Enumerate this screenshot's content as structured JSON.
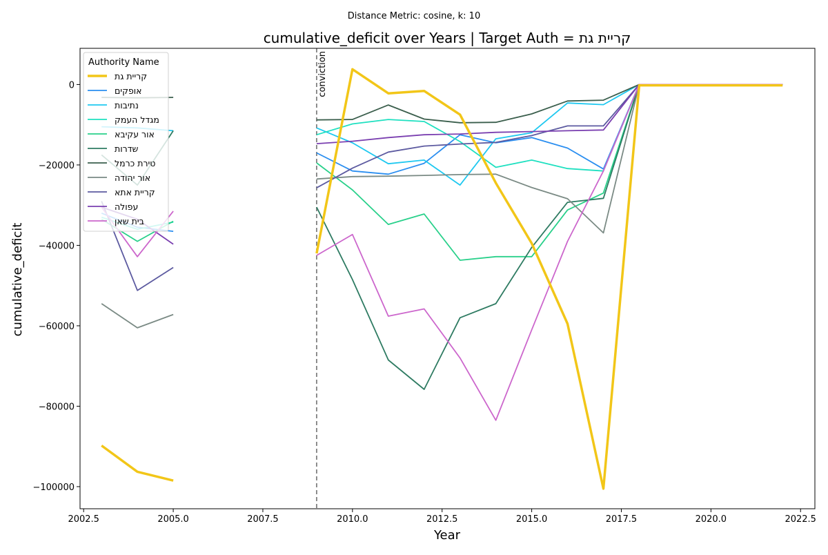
{
  "suptitle": "Distance Metric: cosine, k: 10",
  "chart_data": {
    "type": "line",
    "title": "cumulative_deficit over Years | Target Auth = קריית גת",
    "xlabel": "Year",
    "ylabel": "cumulative_deficit",
    "xlim": [
      2002.4,
      2022.9
    ],
    "ylim": [
      -105500,
      9000
    ],
    "x_ticks": [
      2002.5,
      2005.0,
      2007.5,
      2010.0,
      2012.5,
      2015.0,
      2017.5,
      2020.0,
      2022.5
    ],
    "x_tick_labels": [
      "2002.5",
      "2005.0",
      "2007.5",
      "2010.0",
      "2012.5",
      "2015.0",
      "2017.5",
      "2020.0",
      "2022.5"
    ],
    "y_ticks": [
      0,
      -20000,
      -40000,
      -60000,
      -80000,
      -100000
    ],
    "y_tick_labels": [
      "0",
      "−20000",
      "−40000",
      "−60000",
      "−80000",
      "−100000"
    ],
    "grid": false,
    "legend": {
      "title": "Authority Name",
      "position": "top-left"
    },
    "vline": {
      "x": 2009,
      "label": "conviction",
      "color": "#808080"
    },
    "series": [
      {
        "name": "קריית גת",
        "color": "#f2c618",
        "width": 3.5,
        "segments": [
          {
            "x": [
              2003,
              2004,
              2005
            ],
            "y": [
              -89800,
              -96300,
              -98500
            ]
          },
          {
            "x": [
              2009,
              2010,
              2011,
              2012,
              2013,
              2014,
              2015,
              2016,
              2017,
              2018,
              2019,
              2020,
              2021,
              2022
            ],
            "y": [
              -42000,
              3800,
              -2200,
              -1600,
              -7500,
              -24500,
              -39500,
              -59500,
              -100500,
              -200,
              -200,
              -200,
              -200,
              -200
            ]
          }
        ]
      },
      {
        "name": "אופקים",
        "color": "#2a8ef0",
        "width": 1.8,
        "segments": [
          {
            "x": [
              2003,
              2004,
              2005
            ],
            "y": [
              -32000,
              -35500,
              -36500
            ]
          },
          {
            "x": [
              2009,
              2010,
              2011,
              2012,
              2013,
              2014,
              2015,
              2016,
              2017,
              2018,
              2019,
              2020,
              2021,
              2022
            ],
            "y": [
              -17000,
              -21500,
              -22300,
              -19600,
              -12500,
              -14500,
              -13200,
              -15800,
              -21000,
              0,
              0,
              0,
              0,
              0
            ]
          }
        ]
      },
      {
        "name": "נתיבות",
        "color": "#1ec8f0",
        "width": 1.8,
        "segments": [
          {
            "x": [
              2003,
              2004,
              2005
            ],
            "y": [
              -10500,
              -10800,
              -11500
            ]
          },
          {
            "x": [
              2009,
              2010,
              2011,
              2012,
              2013,
              2014,
              2015,
              2016,
              2017,
              2018,
              2019,
              2020,
              2021,
              2022
            ],
            "y": [
              -10800,
              -14500,
              -19700,
              -18800,
              -25000,
              -13500,
              -12000,
              -4600,
              -5000,
              0,
              0,
              0,
              0,
              0
            ]
          }
        ]
      },
      {
        "name": "מגדל העמק",
        "color": "#1ee0c0",
        "width": 1.8,
        "segments": [
          {
            "x": [
              2003,
              2004,
              2005
            ],
            "y": [
              -33000,
              -36000,
              -34200
            ]
          },
          {
            "x": [
              2009,
              2010,
              2011,
              2012,
              2013,
              2014,
              2015,
              2016,
              2017,
              2018,
              2019,
              2020,
              2021,
              2022
            ],
            "y": [
              -12500,
              -9800,
              -8700,
              -9200,
              -14200,
              -20600,
              -18800,
              -20900,
              -21500,
              0,
              0,
              0,
              0,
              0
            ]
          }
        ]
      },
      {
        "name": "אור עקיבא",
        "color": "#28d08a",
        "width": 1.8,
        "segments": [
          {
            "x": [
              2003,
              2004,
              2005
            ],
            "y": [
              -33500,
              -39000,
              -34000
            ]
          },
          {
            "x": [
              2009,
              2010,
              2011,
              2012,
              2013,
              2014,
              2015,
              2016,
              2017,
              2018,
              2019,
              2020,
              2021,
              2022
            ],
            "y": [
              -19500,
              -26200,
              -34800,
              -32200,
              -43700,
              -42800,
              -42800,
              -31200,
              -27000,
              0,
              0,
              0,
              0,
              0
            ]
          }
        ]
      },
      {
        "name": "שדרות",
        "color": "#2e7b62",
        "width": 1.8,
        "segments": [
          {
            "x": [
              2003,
              2004,
              2005
            ],
            "y": [
              -17500,
              -25000,
              -11500
            ]
          },
          {
            "x": [
              2009,
              2010,
              2011,
              2012,
              2013,
              2014,
              2015,
              2016,
              2017,
              2018,
              2019,
              2020,
              2021,
              2022
            ],
            "y": [
              -30500,
              -48500,
              -68500,
              -75800,
              -58000,
              -54500,
              -40500,
              -29300,
              -28300,
              0,
              0,
              0,
              0,
              0
            ]
          }
        ]
      },
      {
        "name": "טירת כרמל",
        "color": "#3a5e4c",
        "width": 1.8,
        "segments": [
          {
            "x": [
              2003,
              2004,
              2005
            ],
            "y": [
              -3200,
              -3300,
              -3200
            ]
          },
          {
            "x": [
              2009,
              2010,
              2011,
              2012,
              2013,
              2014,
              2015,
              2016,
              2017,
              2018,
              2019,
              2020,
              2021,
              2022
            ],
            "y": [
              -8800,
              -8700,
              -5100,
              -8600,
              -9500,
              -9400,
              -7300,
              -4100,
              -3900,
              0,
              0,
              0,
              0,
              0
            ]
          }
        ]
      },
      {
        "name": "אור יהודה",
        "color": "#7a8a84",
        "width": 1.8,
        "segments": [
          {
            "x": [
              2003,
              2004,
              2005
            ],
            "y": [
              -54500,
              -60500,
              -57200
            ]
          },
          {
            "x": [
              2009,
              2010,
              2011,
              2012,
              2013,
              2014,
              2015,
              2016,
              2017,
              2018,
              2019,
              2020,
              2021,
              2022
            ],
            "y": [
              -23500,
              -22900,
              -22800,
              -22600,
              -22400,
              -22300,
              -25600,
              -28400,
              -36900,
              0,
              0,
              0,
              0,
              0
            ]
          }
        ]
      },
      {
        "name": "קריית אתא",
        "color": "#5c5aa0",
        "width": 1.8,
        "segments": [
          {
            "x": [
              2003,
              2004,
              2005
            ],
            "y": [
              -29000,
              -51200,
              -45500
            ]
          },
          {
            "x": [
              2009,
              2010,
              2011,
              2012,
              2013,
              2014,
              2015,
              2016,
              2017,
              2018,
              2019,
              2020,
              2021,
              2022
            ],
            "y": [
              -25700,
              -20800,
              -16800,
              -15300,
              -14800,
              -14400,
              -12700,
              -10300,
              -10300,
              0,
              0,
              0,
              0,
              0
            ]
          }
        ]
      },
      {
        "name": "עפולה",
        "color": "#7a3fb0",
        "width": 1.8,
        "segments": [
          {
            "x": [
              2003,
              2004,
              2005
            ],
            "y": [
              -30500,
              -33500,
              -39700
            ]
          },
          {
            "x": [
              2009,
              2010,
              2011,
              2012,
              2013,
              2014,
              2015,
              2016,
              2017,
              2018,
              2019,
              2020,
              2021,
              2022
            ],
            "y": [
              -14700,
              -14100,
              -13200,
              -12500,
              -12300,
              -11900,
              -11700,
              -11500,
              -11300,
              0,
              0,
              0,
              0,
              0
            ]
          }
        ]
      },
      {
        "name": "בית שאן",
        "color": "#cc66cc",
        "width": 1.8,
        "segments": [
          {
            "x": [
              2003,
              2004,
              2005
            ],
            "y": [
              -30500,
              -42800,
              -31500
            ]
          },
          {
            "x": [
              2009,
              2010,
              2011,
              2012,
              2013,
              2014,
              2015,
              2016,
              2017,
              2018,
              2019,
              2020,
              2021,
              2022
            ],
            "y": [
              -42500,
              -37300,
              -57600,
              -55800,
              -68000,
              -83500,
              -61000,
              -39000,
              -21500,
              0,
              0,
              0,
              0,
              0
            ]
          }
        ]
      }
    ]
  }
}
